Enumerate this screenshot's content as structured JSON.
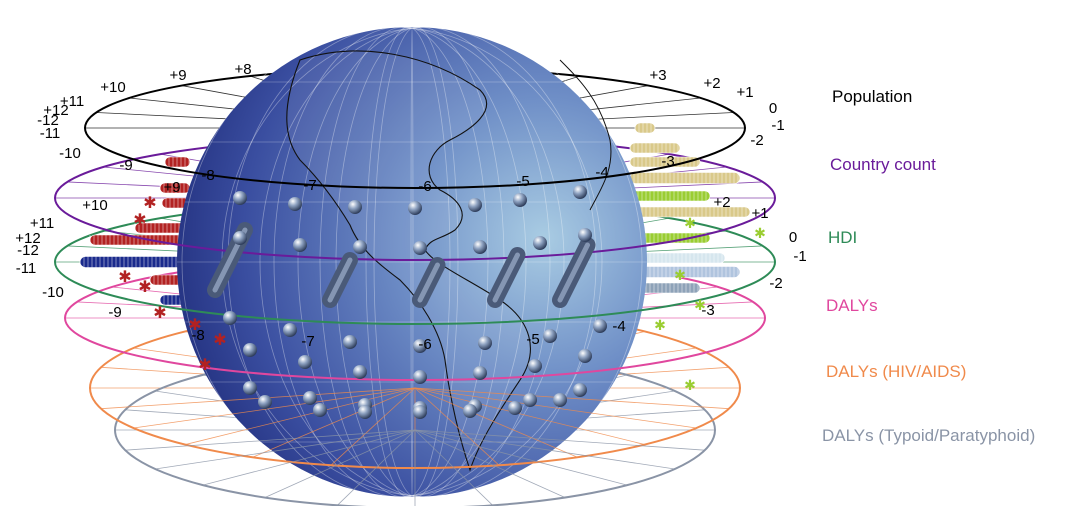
{
  "layers": [
    {
      "name": "Population",
      "color": "#000000",
      "labels_back": [
        "+3",
        "+2",
        "+1",
        "0",
        "-1",
        "+8",
        "+9",
        "+10",
        "+11",
        "+12",
        "-12",
        "-11",
        "-10"
      ],
      "labels_front": [
        "-9",
        "-8",
        "-7",
        "-6",
        "-5",
        "-4",
        "-3",
        "-2"
      ]
    },
    {
      "name": "Country count",
      "color": "#6a1b9a",
      "labels_back": [
        "+9",
        "+10"
      ],
      "labels_front": []
    },
    {
      "name": "HDI",
      "color": "#2e8b57",
      "labels_back": [
        "+11",
        "+12",
        "-12",
        "-11",
        "-10",
        "+2",
        "+1",
        "0",
        "-1"
      ],
      "labels_front": []
    },
    {
      "name": "DALYs",
      "color": "#e0479e",
      "labels_back": [
        "-2",
        "-3",
        "-4",
        "-5",
        "-6",
        "-7",
        "-8",
        "-9"
      ],
      "labels_front": []
    },
    {
      "name": "DALYs (HIV/AIDS)",
      "color": "#f08a4b",
      "labels_back": [],
      "labels_front": []
    },
    {
      "name": "DALYs (Typoid/Paratyphoid)",
      "color": "#8a94a6",
      "labels_back": [],
      "labels_front": []
    }
  ],
  "globe": {
    "ocean_light": "#a9cce3",
    "ocean_dark": "#1e2a78",
    "land_outline": "#111111"
  },
  "icons": {
    "marker": "sphere-marker-icon",
    "star": "star-marker-icon"
  }
}
